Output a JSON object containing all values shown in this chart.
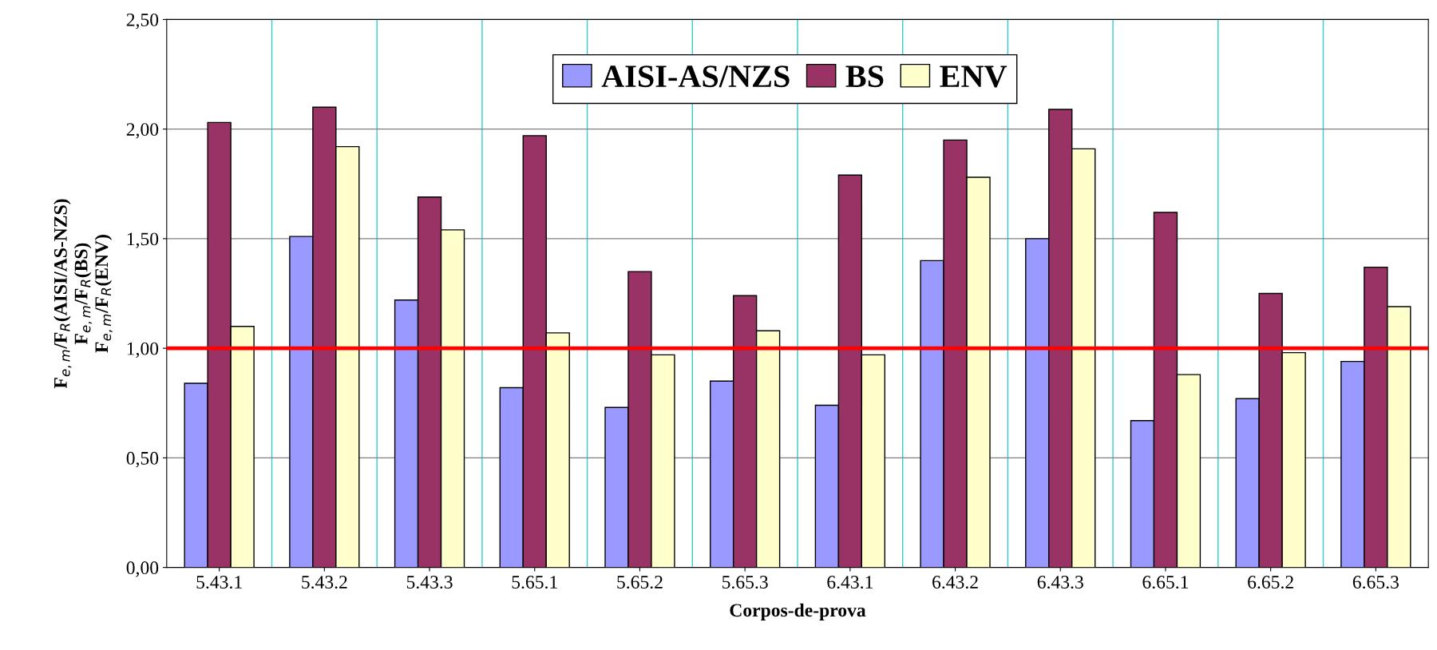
{
  "chart_data": {
    "type": "bar",
    "xlabel": "Corpos-de-prova",
    "ylabel": "F$_{e,m}$/F$_{R}$(AISI/AS-NZS)\nF$_{e,m}$/F$_{R}$(BS)\nF$_{e,m}$/F$_{R}$(ENV)",
    "categories": [
      "5.43.1",
      "5.43.2",
      "5.43.3",
      "5.65.1",
      "5.65.2",
      "5.65.3",
      "6.43.1",
      "6.43.2",
      "6.43.3",
      "6.65.1",
      "6.65.2",
      "6.65.3"
    ],
    "series": [
      {
        "name": "AISI-AS/NZS",
        "color": "#9999ff",
        "values": [
          0.84,
          1.51,
          1.22,
          0.82,
          0.73,
          0.85,
          0.74,
          1.4,
          1.5,
          0.67,
          0.77,
          0.94
        ]
      },
      {
        "name": "BS",
        "color": "#993366",
        "values": [
          2.03,
          2.1,
          1.69,
          1.97,
          1.35,
          1.24,
          1.79,
          1.95,
          2.09,
          1.62,
          1.25,
          1.37
        ]
      },
      {
        "name": "ENV",
        "color": "#ffffcc",
        "values": [
          1.1,
          1.92,
          1.54,
          1.07,
          0.97,
          1.08,
          0.97,
          1.78,
          1.91,
          0.88,
          0.98,
          1.19
        ]
      }
    ],
    "ylim": [
      0,
      2.5
    ],
    "yticks": [
      {
        "value": 0,
        "label": "0,00"
      },
      {
        "value": 0.5,
        "label": "0,50"
      },
      {
        "value": 1,
        "label": "1,00"
      },
      {
        "value": 1.5,
        "label": "1,50"
      },
      {
        "value": 2,
        "label": "2,00"
      },
      {
        "value": 2.5,
        "label": "2,50"
      }
    ],
    "grid": true,
    "legend": "top",
    "ref_lines": [
      {
        "axis": "y",
        "value": 1,
        "label": null,
        "color": "#ff0000"
      }
    ]
  }
}
